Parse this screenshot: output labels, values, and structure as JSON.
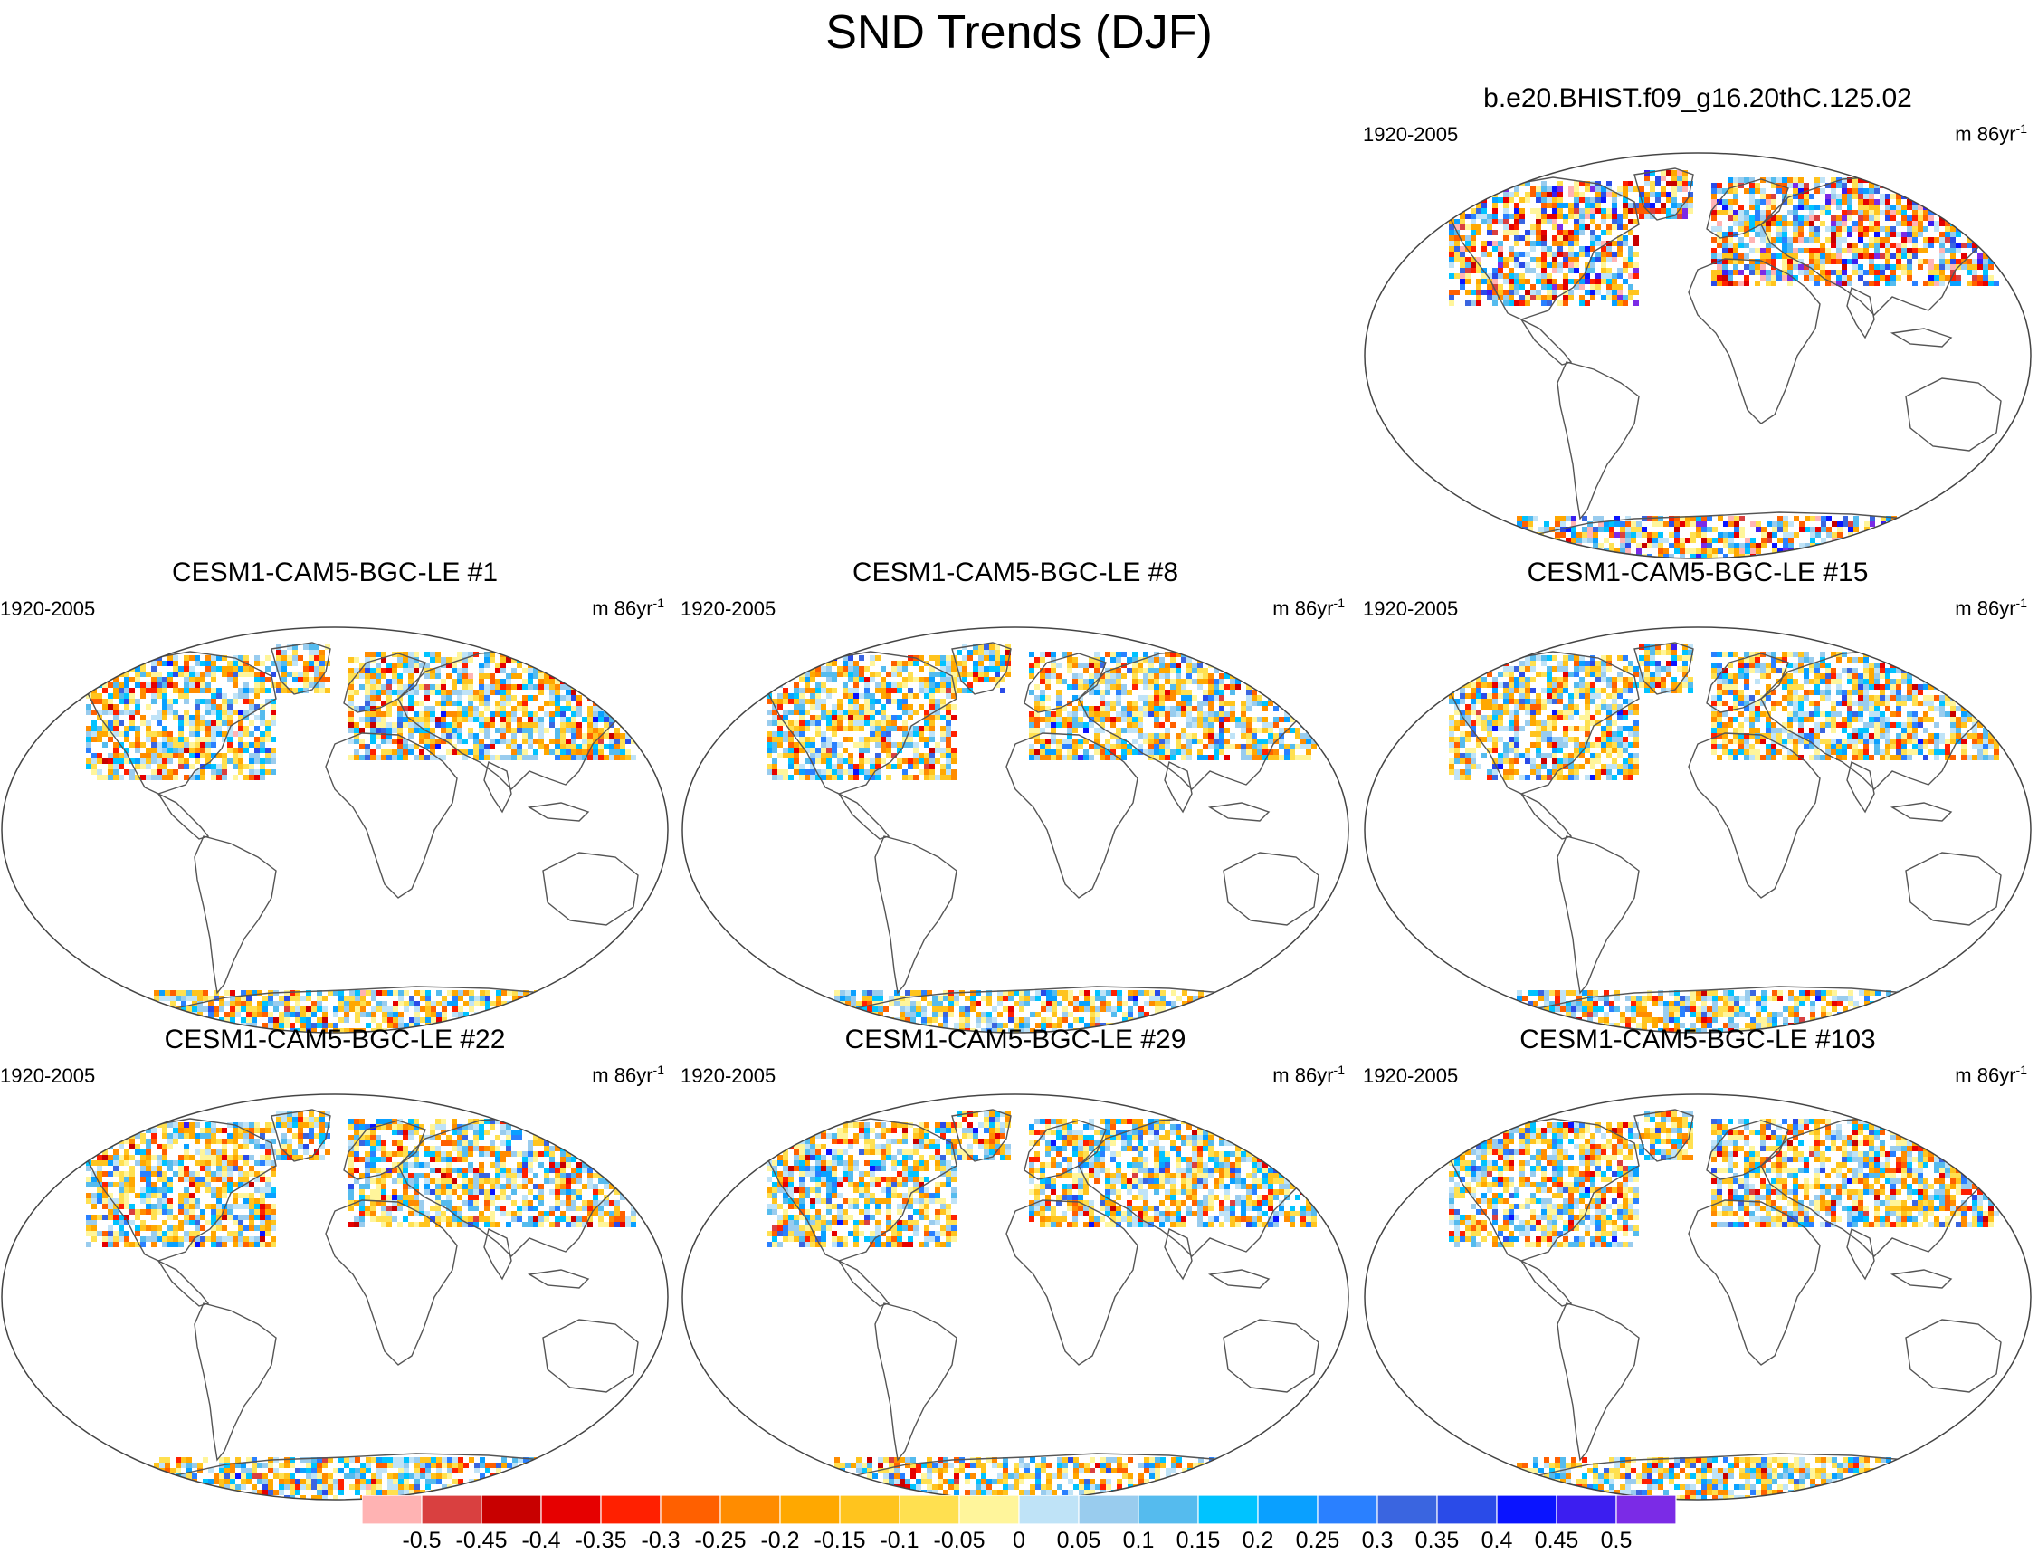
{
  "title": "SND Trends (DJF)",
  "panels": [
    {
      "name": "b.e20.BHIST.f09_g16.20thC.125.02",
      "period": "1920-2005",
      "units": "m 86yr",
      "units_exp": "-1",
      "intensity": 1.0
    },
    {
      "name": "CESM1-CAM5-BGC-LE #1",
      "period": "1920-2005",
      "units": "m 86yr",
      "units_exp": "-1",
      "intensity": 0.45
    },
    {
      "name": "CESM1-CAM5-BGC-LE #8",
      "period": "1920-2005",
      "units": "m 86yr",
      "units_exp": "-1",
      "intensity": 0.5
    },
    {
      "name": "CESM1-CAM5-BGC-LE #15",
      "period": "1920-2005",
      "units": "m 86yr",
      "units_exp": "-1",
      "intensity": 0.5
    },
    {
      "name": "CESM1-CAM5-BGC-LE #22",
      "period": "1920-2005",
      "units": "m 86yr",
      "units_exp": "-1",
      "intensity": 0.45
    },
    {
      "name": "CESM1-CAM5-BGC-LE #29",
      "period": "1920-2005",
      "units": "m 86yr",
      "units_exp": "-1",
      "intensity": 0.45
    },
    {
      "name": "CESM1-CAM5-BGC-LE #103",
      "period": "1920-2005",
      "units": "m 86yr",
      "units_exp": "-1",
      "intensity": 0.45
    }
  ],
  "colorbar": {
    "labels": [
      "-0.5",
      "-0.45",
      "-0.4",
      "-0.35",
      "-0.3",
      "-0.25",
      "-0.2",
      "-0.15",
      "-0.1",
      "-0.05",
      "0",
      "0.05",
      "0.1",
      "0.15",
      "0.2",
      "0.25",
      "0.3",
      "0.35",
      "0.4",
      "0.45",
      "0.5"
    ],
    "colors": [
      "#ffb3b3",
      "#d94040",
      "#c80000",
      "#e60000",
      "#ff2000",
      "#ff6000",
      "#ff8c00",
      "#ffa800",
      "#ffc41e",
      "#ffe050",
      "#fff59b",
      "#bfe3f7",
      "#99ccee",
      "#55bbee",
      "#00c3ff",
      "#0aa0ff",
      "#2a80ff",
      "#3a65e0",
      "#2a4be8",
      "#0a14ff",
      "#3c1ef0",
      "#7b2be6"
    ]
  }
}
